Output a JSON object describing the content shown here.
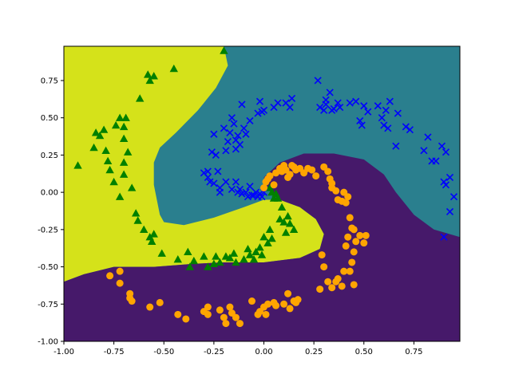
{
  "chart_data": {
    "type": "scatter",
    "title": "",
    "xlabel": "",
    "ylabel": "",
    "xlim": [
      -1.0,
      0.98
    ],
    "ylim": [
      -1.0,
      0.98
    ],
    "x_ticks": [
      "-1.00",
      "-0.75",
      "-0.50",
      "-0.25",
      "0.00",
      "0.25",
      "0.50",
      "0.75"
    ],
    "y_ticks": [
      "-1.00",
      "-0.75",
      "-0.50",
      "-0.25",
      "0.00",
      "0.25",
      "0.50",
      "0.75"
    ],
    "x_tick_values": [
      -1.0,
      -0.75,
      -0.5,
      -0.25,
      0.0,
      0.25,
      0.5,
      0.75
    ],
    "y_tick_values": [
      -1.0,
      -0.75,
      -0.5,
      -0.25,
      0.0,
      0.25,
      0.5,
      0.75
    ],
    "grid": false,
    "legend": "none",
    "decision_regions": [
      {
        "class": 0,
        "color": "#d5e21a",
        "boundary": [
          [
            -1.0,
            0.98
          ],
          [
            -0.2,
            0.98
          ],
          [
            -0.18,
            0.85
          ],
          [
            -0.24,
            0.7
          ],
          [
            -0.33,
            0.55
          ],
          [
            -0.44,
            0.4
          ],
          [
            -0.52,
            0.3
          ],
          [
            -0.55,
            0.2
          ],
          [
            -0.55,
            0.05
          ],
          [
            -0.52,
            -0.15
          ],
          [
            -0.5,
            -0.2
          ],
          [
            -0.4,
            -0.22
          ],
          [
            -0.25,
            -0.17
          ],
          [
            -0.1,
            -0.1
          ],
          [
            0.0,
            -0.05
          ],
          [
            0.08,
            -0.05
          ],
          [
            0.18,
            -0.1
          ],
          [
            0.26,
            -0.18
          ],
          [
            0.3,
            -0.28
          ],
          [
            0.28,
            -0.38
          ],
          [
            0.18,
            -0.44
          ],
          [
            0.0,
            -0.47
          ],
          [
            -0.2,
            -0.47
          ],
          [
            -0.35,
            -0.48
          ],
          [
            -0.55,
            -0.5
          ],
          [
            -0.75,
            -0.5
          ],
          [
            -0.9,
            -0.55
          ],
          [
            -1.0,
            -0.6
          ]
        ]
      },
      {
        "class": 2,
        "color": "#46196a",
        "boundary": [
          [
            -1.0,
            -1.0
          ],
          [
            0.98,
            -1.0
          ],
          [
            0.98,
            -0.3
          ],
          [
            0.85,
            -0.25
          ],
          [
            0.75,
            -0.15
          ],
          [
            0.66,
            0.0
          ],
          [
            0.6,
            0.12
          ],
          [
            0.5,
            0.22
          ],
          [
            0.35,
            0.26
          ],
          [
            0.2,
            0.26
          ],
          [
            0.08,
            0.2
          ],
          [
            0.0,
            0.1
          ],
          [
            0.02,
            0.03
          ],
          [
            0.08,
            -0.05
          ],
          [
            0.18,
            -0.1
          ],
          [
            0.26,
            -0.18
          ],
          [
            0.3,
            -0.28
          ],
          [
            0.28,
            -0.38
          ],
          [
            0.18,
            -0.44
          ],
          [
            0.0,
            -0.47
          ],
          [
            -0.2,
            -0.47
          ],
          [
            -0.35,
            -0.48
          ],
          [
            -0.55,
            -0.5
          ],
          [
            -0.75,
            -0.5
          ],
          [
            -0.9,
            -0.55
          ],
          [
            -1.0,
            -0.6
          ]
        ]
      }
    ],
    "background_region": {
      "class": 1,
      "color": "#2a7f8e"
    },
    "series": [
      {
        "class": 0,
        "marker": "triangle",
        "color": "#008000",
        "points": [
          [
            -0.93,
            0.18
          ],
          [
            -0.85,
            0.3
          ],
          [
            -0.84,
            0.4
          ],
          [
            -0.82,
            0.38
          ],
          [
            -0.8,
            0.42
          ],
          [
            -0.79,
            0.28
          ],
          [
            -0.78,
            0.21
          ],
          [
            -0.77,
            0.15
          ],
          [
            -0.75,
            0.07
          ],
          [
            -0.74,
            0.45
          ],
          [
            -0.72,
            0.5
          ],
          [
            -0.72,
            -0.03
          ],
          [
            -0.7,
            0.44
          ],
          [
            -0.7,
            0.36
          ],
          [
            -0.7,
            0.2
          ],
          [
            -0.7,
            0.12
          ],
          [
            -0.69,
            0.5
          ],
          [
            -0.68,
            0.27
          ],
          [
            -0.66,
            0.03
          ],
          [
            -0.64,
            -0.14
          ],
          [
            -0.63,
            -0.19
          ],
          [
            -0.62,
            0.63
          ],
          [
            -0.6,
            -0.25
          ],
          [
            -0.58,
            0.79
          ],
          [
            -0.57,
            0.75
          ],
          [
            -0.55,
            0.78
          ],
          [
            -0.55,
            -0.28
          ],
          [
            -0.57,
            -0.3
          ],
          [
            -0.56,
            -0.33
          ],
          [
            -0.51,
            -0.41
          ],
          [
            -0.45,
            0.83
          ],
          [
            -0.43,
            -0.45
          ],
          [
            -0.38,
            -0.4
          ],
          [
            -0.37,
            -0.5
          ],
          [
            -0.35,
            -0.46
          ],
          [
            -0.3,
            -0.43
          ],
          [
            -0.28,
            -0.5
          ],
          [
            -0.25,
            -0.48
          ],
          [
            -0.24,
            -0.43
          ],
          [
            -0.22,
            -0.47
          ],
          [
            -0.2,
            0.95
          ],
          [
            -0.19,
            -0.43
          ],
          [
            -0.17,
            -0.44
          ],
          [
            -0.15,
            -0.41
          ],
          [
            -0.14,
            -0.47
          ],
          [
            -0.1,
            -0.45
          ],
          [
            -0.08,
            -0.38
          ],
          [
            -0.07,
            -0.42
          ],
          [
            -0.05,
            -0.45
          ],
          [
            -0.04,
            -0.4
          ],
          [
            -0.02,
            -0.37
          ],
          [
            -0.01,
            -0.42
          ],
          [
            0.0,
            -0.3
          ],
          [
            0.02,
            -0.34
          ],
          [
            0.03,
            -0.25
          ],
          [
            0.04,
            -0.31
          ],
          [
            0.05,
            -0.04
          ],
          [
            0.06,
            -0.01
          ],
          [
            0.07,
            -0.04
          ],
          [
            0.08,
            -0.18
          ],
          [
            0.09,
            -0.1
          ],
          [
            0.1,
            -0.2
          ],
          [
            0.11,
            -0.27
          ],
          [
            0.12,
            -0.16
          ],
          [
            0.13,
            -0.21
          ],
          [
            0.15,
            -0.25
          ],
          [
            0.04,
            0.0
          ],
          [
            0.03,
            0.03
          ]
        ]
      },
      {
        "class": 1,
        "marker": "x",
        "color": "#0000ff",
        "points": [
          [
            -0.3,
            0.13
          ],
          [
            -0.28,
            0.1
          ],
          [
            -0.28,
            0.14
          ],
          [
            -0.27,
            0.07
          ],
          [
            -0.26,
            0.27
          ],
          [
            -0.25,
            0.39
          ],
          [
            -0.25,
            0.06
          ],
          [
            -0.24,
            0.25
          ],
          [
            -0.23,
            0.14
          ],
          [
            -0.22,
            0.03
          ],
          [
            -0.22,
            0.0
          ],
          [
            -0.2,
            0.43
          ],
          [
            -0.19,
            0.28
          ],
          [
            -0.19,
            0.07
          ],
          [
            -0.18,
            0.34
          ],
          [
            -0.17,
            0.4
          ],
          [
            -0.16,
            0.02
          ],
          [
            -0.16,
            0.5
          ],
          [
            -0.15,
            0.46
          ],
          [
            -0.14,
            0.35
          ],
          [
            -0.14,
            0.29
          ],
          [
            -0.14,
            0.07
          ],
          [
            -0.13,
            0.38
          ],
          [
            -0.13,
            0.0
          ],
          [
            -0.12,
            0.32
          ],
          [
            -0.12,
            0.02
          ],
          [
            -0.11,
            0.59
          ],
          [
            -0.11,
            -0.01
          ],
          [
            -0.1,
            0.43
          ],
          [
            -0.09,
            0.39
          ],
          [
            -0.09,
            0.0
          ],
          [
            -0.08,
            -0.03
          ],
          [
            -0.07,
            0.48
          ],
          [
            -0.07,
            0.04
          ],
          [
            -0.06,
            -0.02
          ],
          [
            -0.05,
            -0.02
          ],
          [
            -0.04,
            0.0
          ],
          [
            -0.03,
            0.53
          ],
          [
            -0.03,
            -0.03
          ],
          [
            -0.02,
            0.61
          ],
          [
            -0.02,
            -0.01
          ],
          [
            -0.01,
            0.54
          ],
          [
            -0.01,
            -0.03
          ],
          [
            0.0,
            0.55
          ],
          [
            0.0,
            0.0
          ],
          [
            0.05,
            0.57
          ],
          [
            0.07,
            0.6
          ],
          [
            0.11,
            0.6
          ],
          [
            0.13,
            0.57
          ],
          [
            0.14,
            0.63
          ],
          [
            0.27,
            0.75
          ],
          [
            0.28,
            0.57
          ],
          [
            0.3,
            0.55
          ],
          [
            0.31,
            0.59
          ],
          [
            0.31,
            0.62
          ],
          [
            0.33,
            0.67
          ],
          [
            0.34,
            0.55
          ],
          [
            0.35,
            0.56
          ],
          [
            0.37,
            0.6
          ],
          [
            0.38,
            0.57
          ],
          [
            0.43,
            0.6
          ],
          [
            0.46,
            0.61
          ],
          [
            0.48,
            0.48
          ],
          [
            0.49,
            0.45
          ],
          [
            0.5,
            0.58
          ],
          [
            0.52,
            0.54
          ],
          [
            0.57,
            0.58
          ],
          [
            0.59,
            0.5
          ],
          [
            0.6,
            0.45
          ],
          [
            0.61,
            0.55
          ],
          [
            0.62,
            0.43
          ],
          [
            0.63,
            0.61
          ],
          [
            0.66,
            0.31
          ],
          [
            0.67,
            0.53
          ],
          [
            0.71,
            0.44
          ],
          [
            0.73,
            0.42
          ],
          [
            0.8,
            0.28
          ],
          [
            0.82,
            0.37
          ],
          [
            0.84,
            0.21
          ],
          [
            0.86,
            0.21
          ],
          [
            0.89,
            0.31
          ],
          [
            0.9,
            0.07
          ],
          [
            0.91,
            0.05
          ],
          [
            0.93,
            0.1
          ],
          [
            0.93,
            -0.13
          ],
          [
            0.95,
            -0.03
          ],
          [
            0.9,
            -0.3
          ],
          [
            0.91,
            0.27
          ]
        ]
      },
      {
        "class": 2,
        "marker": "circle",
        "color": "#ffa500",
        "points": [
          [
            -0.77,
            -0.56
          ],
          [
            -0.72,
            -0.53
          ],
          [
            -0.72,
            -0.61
          ],
          [
            -0.67,
            -0.68
          ],
          [
            -0.67,
            -0.71
          ],
          [
            -0.66,
            -0.73
          ],
          [
            -0.57,
            -0.77
          ],
          [
            -0.52,
            -0.74
          ],
          [
            -0.43,
            -0.82
          ],
          [
            -0.39,
            -0.85
          ],
          [
            -0.3,
            -0.8
          ],
          [
            -0.28,
            -0.77
          ],
          [
            -0.28,
            -0.82
          ],
          [
            -0.22,
            -0.79
          ],
          [
            -0.2,
            -0.84
          ],
          [
            -0.19,
            -0.88
          ],
          [
            -0.17,
            -0.77
          ],
          [
            -0.16,
            -0.81
          ],
          [
            -0.14,
            -0.84
          ],
          [
            -0.12,
            -0.88
          ],
          [
            -0.06,
            -0.73
          ],
          [
            -0.03,
            -0.82
          ],
          [
            -0.02,
            -0.8
          ],
          [
            0.0,
            -0.77
          ],
          [
            0.01,
            -0.82
          ],
          [
            0.02,
            -0.75
          ],
          [
            0.05,
            -0.74
          ],
          [
            0.06,
            -0.76
          ],
          [
            0.1,
            -0.75
          ],
          [
            0.12,
            -0.68
          ],
          [
            0.13,
            -0.78
          ],
          [
            0.15,
            -0.73
          ],
          [
            0.16,
            -0.74
          ],
          [
            0.17,
            -0.72
          ],
          [
            0.0,
            0.03
          ],
          [
            0.01,
            0.07
          ],
          [
            0.02,
            0.09
          ],
          [
            0.03,
            0.11
          ],
          [
            0.05,
            0.05
          ],
          [
            0.06,
            0.13
          ],
          [
            0.08,
            0.16
          ],
          [
            0.09,
            0.14
          ],
          [
            0.1,
            0.18
          ],
          [
            0.11,
            0.15
          ],
          [
            0.12,
            0.1
          ],
          [
            0.13,
            0.12
          ],
          [
            0.14,
            0.18
          ],
          [
            0.15,
            0.17
          ],
          [
            0.16,
            0.15
          ],
          [
            0.18,
            0.16
          ],
          [
            0.2,
            0.13
          ],
          [
            0.22,
            0.16
          ],
          [
            0.24,
            0.15
          ],
          [
            0.26,
            0.11
          ],
          [
            0.3,
            0.17
          ],
          [
            0.32,
            0.14
          ],
          [
            0.33,
            0.09
          ],
          [
            0.34,
            0.06
          ],
          [
            0.34,
            0.03
          ],
          [
            0.36,
            0.01
          ],
          [
            0.37,
            -0.05
          ],
          [
            0.39,
            -0.06
          ],
          [
            0.4,
            0.0
          ],
          [
            0.41,
            -0.07
          ],
          [
            0.42,
            -0.03
          ],
          [
            0.43,
            -0.17
          ],
          [
            0.44,
            -0.24
          ],
          [
            0.45,
            -0.25
          ],
          [
            0.46,
            -0.33
          ],
          [
            0.45,
            -0.4
          ],
          [
            0.44,
            -0.47
          ],
          [
            0.43,
            -0.53
          ],
          [
            0.42,
            -0.3
          ],
          [
            0.41,
            -0.36
          ],
          [
            0.4,
            -0.53
          ],
          [
            0.39,
            -0.63
          ],
          [
            0.37,
            -0.58
          ],
          [
            0.36,
            -0.6
          ],
          [
            0.34,
            -0.64
          ],
          [
            0.32,
            -0.6
          ],
          [
            0.3,
            -0.5
          ],
          [
            0.29,
            -0.42
          ],
          [
            0.28,
            -0.65
          ],
          [
            0.48,
            -0.29
          ],
          [
            0.5,
            -0.34
          ],
          [
            0.51,
            -0.29
          ],
          [
            0.45,
            -0.62
          ]
        ]
      }
    ]
  }
}
